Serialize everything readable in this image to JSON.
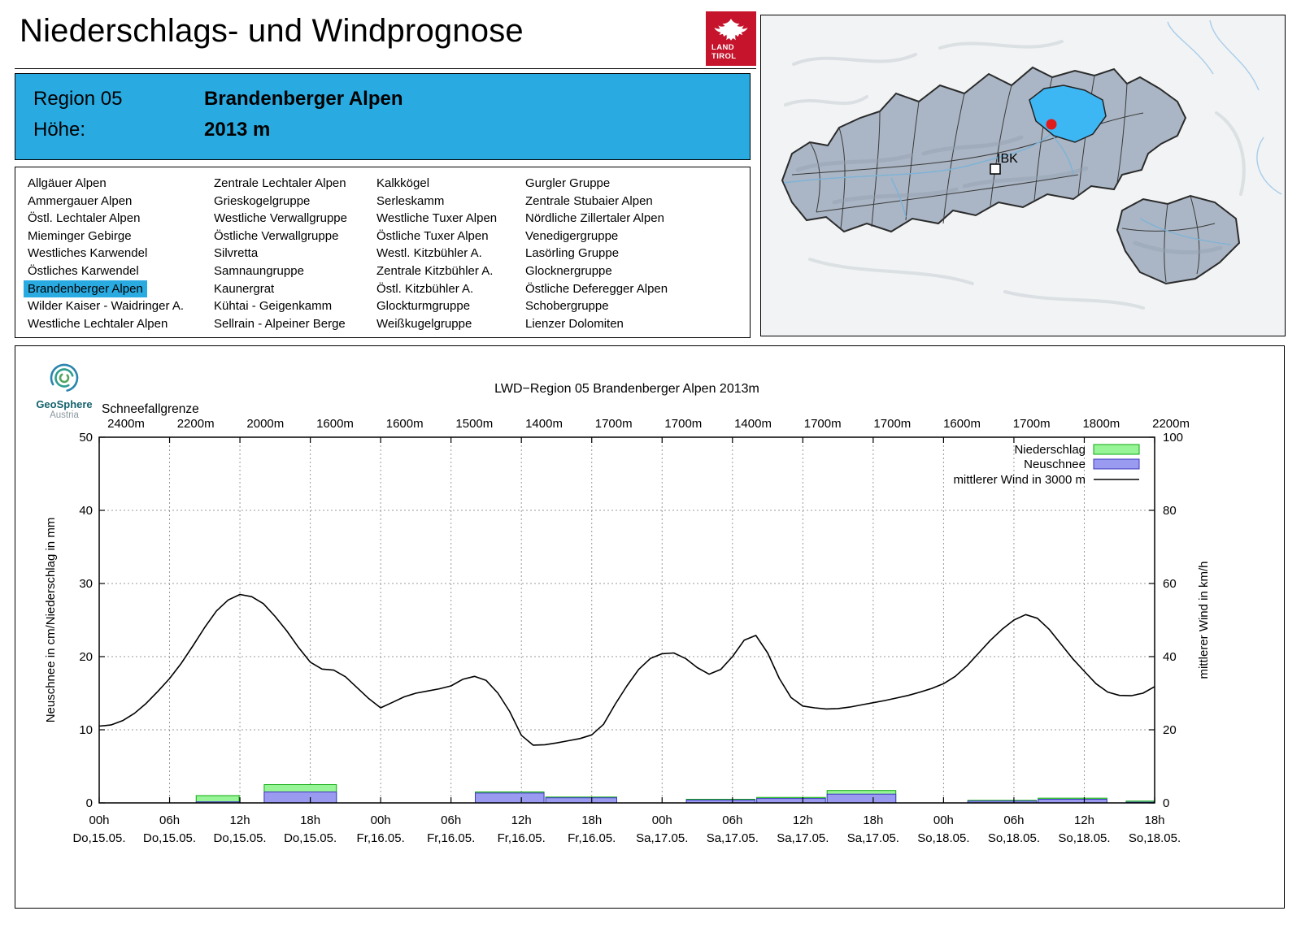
{
  "page": {
    "title": "Niederschlags- und Windprognose"
  },
  "logo": {
    "line1": "LAND",
    "line2": "TIROL"
  },
  "header": {
    "region_label": "Region 05",
    "region_name": "Brandenberger Alpen",
    "hoehe_label": "Höhe:",
    "hoehe_value": "2013 m"
  },
  "colors": {
    "header_blue": "#29abe2",
    "highlight_blue": "#3db6f4",
    "logo_red": "#c5142c",
    "niederschlag_green": "#97f497",
    "neuschnee_blue": "#9a9af0"
  },
  "region_list": {
    "selected": "Brandenberger Alpen",
    "columns": [
      [
        "Allgäuer Alpen",
        "Ammergauer Alpen",
        "Östl. Lechtaler Alpen",
        "Mieminger Gebirge",
        "Westliches Karwendel",
        "Östliches Karwendel",
        "Brandenberger Alpen",
        "Wilder Kaiser - Waidringer A.",
        "Westliche Lechtaler Alpen"
      ],
      [
        "Zentrale Lechtaler Alpen",
        "Grieskogelgruppe",
        "Westliche Verwallgruppe",
        "Östliche Verwallgruppe",
        "Silvretta",
        "Samnaungruppe",
        "Kaunergrat",
        "Kühtai - Geigenkamm",
        "Sellrain - Alpeiner Berge"
      ],
      [
        "Kalkkögel",
        "Serleskamm",
        "Westliche Tuxer Alpen",
        "Östliche Tuxer Alpen",
        "Westl. Kitzbühler A.",
        "Zentrale Kitzbühler A.",
        "Östl. Kitzbühler A.",
        "Glockturmgruppe",
        "Weißkugelgruppe"
      ],
      [
        "Gurgler Gruppe",
        "Zentrale Stubaier Alpen",
        "Nördliche Zillertaler Alpen",
        "Venedigergruppe",
        "Lasörling Gruppe",
        "Glocknergruppe",
        "Östliche Deferegger Alpen",
        "Schobergruppe",
        "Lienzer Dolomiten"
      ]
    ]
  },
  "map": {
    "ibk_label": "IBK"
  },
  "geosphere": {
    "line1": "GeoSphere",
    "line2": "Austria"
  },
  "chart_data": {
    "type": "bar+line",
    "title": "LWD−Region 05 Brandenberger Alpen 2013m",
    "snowline": {
      "label": "Schneefallgrenze",
      "values": [
        "2400m",
        "2200m",
        "2000m",
        "1600m",
        "1600m",
        "1500m",
        "1400m",
        "1700m",
        "1700m",
        "1400m",
        "1700m",
        "1700m",
        "1600m",
        "1700m",
        "1800m",
        "2200m"
      ]
    },
    "ylabel_left": "Neuschnee in cm/Niederschlag in mm",
    "ylabel_right": "mittlerer Wind in km/h",
    "ylim_left": [
      0,
      50
    ],
    "ylim_right": [
      0,
      100
    ],
    "yticks_left": [
      0,
      10,
      20,
      30,
      40,
      50
    ],
    "yticks_right": [
      0,
      20,
      40,
      60,
      80,
      100
    ],
    "x_range_hours": 90,
    "x_ticks": [
      {
        "hour": "00h",
        "day": "Do,15.05."
      },
      {
        "hour": "06h",
        "day": "Do,15.05."
      },
      {
        "hour": "12h",
        "day": "Do,15.05."
      },
      {
        "hour": "18h",
        "day": "Do,15.05."
      },
      {
        "hour": "00h",
        "day": "Fr,16.05."
      },
      {
        "hour": "06h",
        "day": "Fr,16.05."
      },
      {
        "hour": "12h",
        "day": "Fr,16.05."
      },
      {
        "hour": "18h",
        "day": "Fr,16.05."
      },
      {
        "hour": "00h",
        "day": "Sa,17.05."
      },
      {
        "hour": "06h",
        "day": "Sa,17.05."
      },
      {
        "hour": "12h",
        "day": "Sa,17.05."
      },
      {
        "hour": "18h",
        "day": "Sa,17.05."
      },
      {
        "hour": "00h",
        "day": "So,18.05."
      },
      {
        "hour": "06h",
        "day": "So,18.05."
      },
      {
        "hour": "12h",
        "day": "So,18.05."
      },
      {
        "hour": "18h",
        "day": "So,18.05."
      }
    ],
    "legend": [
      {
        "label": "Niederschlag",
        "swatch": "box",
        "fill": "#97f497",
        "stroke": "#0caa0c"
      },
      {
        "label": "Neuschnee",
        "swatch": "box",
        "fill": "#9a9af0",
        "stroke": "#3b3bbe"
      },
      {
        "label": "mittlerer Wind in 3000 m",
        "swatch": "line",
        "stroke": "#000000"
      }
    ],
    "grid": true,
    "bars": [
      {
        "start": 8.2,
        "end": 12,
        "niederschlag": 1.0,
        "neuschnee": 0.15
      },
      {
        "start": 14,
        "end": 20.3,
        "niederschlag": 2.5,
        "neuschnee": 1.5
      },
      {
        "start": 32,
        "end": 38,
        "niederschlag": 1.5,
        "neuschnee": 1.35
      },
      {
        "start": 38,
        "end": 44.2,
        "niederschlag": 0.8,
        "neuschnee": 0.7
      },
      {
        "start": 50,
        "end": 56,
        "niederschlag": 0.5,
        "neuschnee": 0.4
      },
      {
        "start": 56,
        "end": 62,
        "niederschlag": 0.75,
        "neuschnee": 0.6
      },
      {
        "start": 62,
        "end": 68,
        "niederschlag": 1.7,
        "neuschnee": 1.2
      },
      {
        "start": 74,
        "end": 80,
        "niederschlag": 0.35,
        "neuschnee": 0.25
      },
      {
        "start": 80,
        "end": 86,
        "niederschlag": 0.65,
        "neuschnee": 0.5
      },
      {
        "start": 87.5,
        "end": 90,
        "niederschlag": 0.25,
        "neuschnee": 0.1
      }
    ],
    "wind_series": [
      [
        0,
        21
      ],
      [
        1,
        21.3
      ],
      [
        2,
        22.5
      ],
      [
        3,
        24.5
      ],
      [
        4,
        27.2
      ],
      [
        5,
        30.5
      ],
      [
        6,
        34
      ],
      [
        7,
        38.2
      ],
      [
        8,
        43
      ],
      [
        9,
        48
      ],
      [
        10,
        52.5
      ],
      [
        11,
        55.5
      ],
      [
        12,
        57
      ],
      [
        13,
        56.4
      ],
      [
        14,
        54.5
      ],
      [
        15,
        51
      ],
      [
        16,
        47
      ],
      [
        17,
        42.5
      ],
      [
        18,
        38.5
      ],
      [
        19,
        36.6
      ],
      [
        20,
        36.3
      ],
      [
        21,
        34.5
      ],
      [
        22,
        31.5
      ],
      [
        23,
        28.5
      ],
      [
        24,
        26
      ],
      [
        25,
        27.5
      ],
      [
        26,
        29
      ],
      [
        27,
        30
      ],
      [
        28,
        30.6
      ],
      [
        29,
        31.2
      ],
      [
        30,
        32
      ],
      [
        31,
        33.8
      ],
      [
        32,
        34.6
      ],
      [
        33,
        33.5
      ],
      [
        34,
        30
      ],
      [
        35,
        25
      ],
      [
        36,
        18.5
      ],
      [
        37,
        15.8
      ],
      [
        38,
        15.9
      ],
      [
        39,
        16.4
      ],
      [
        40,
        17
      ],
      [
        41,
        17.6
      ],
      [
        42,
        18.6
      ],
      [
        43,
        21.5
      ],
      [
        44,
        27
      ],
      [
        45,
        32
      ],
      [
        46,
        36.5
      ],
      [
        47,
        39.5
      ],
      [
        48,
        40.8
      ],
      [
        49,
        41
      ],
      [
        50,
        39.5
      ],
      [
        51,
        37
      ],
      [
        52,
        35.2
      ],
      [
        53,
        36.5
      ],
      [
        54,
        40
      ],
      [
        55,
        44.5
      ],
      [
        56,
        45.8
      ],
      [
        57,
        41
      ],
      [
        58,
        34
      ],
      [
        59,
        28.8
      ],
      [
        60,
        26.5
      ],
      [
        61,
        26
      ],
      [
        62,
        25.7
      ],
      [
        63,
        25.8
      ],
      [
        64,
        26.2
      ],
      [
        65,
        26.8
      ],
      [
        66,
        27.4
      ],
      [
        67,
        28
      ],
      [
        68,
        28.7
      ],
      [
        69,
        29.4
      ],
      [
        70,
        30.3
      ],
      [
        71,
        31.3
      ],
      [
        72,
        32.6
      ],
      [
        73,
        34.6
      ],
      [
        74,
        37.5
      ],
      [
        75,
        41
      ],
      [
        76,
        44.5
      ],
      [
        77,
        47.5
      ],
      [
        78,
        50
      ],
      [
        79,
        51.5
      ],
      [
        80,
        50.5
      ],
      [
        81,
        47.5
      ],
      [
        82,
        43.5
      ],
      [
        83,
        39.5
      ],
      [
        84,
        36
      ],
      [
        85,
        32.6
      ],
      [
        86,
        30.3
      ],
      [
        87,
        29.4
      ],
      [
        88,
        29.3
      ],
      [
        89,
        30
      ],
      [
        90,
        31.8
      ]
    ]
  }
}
